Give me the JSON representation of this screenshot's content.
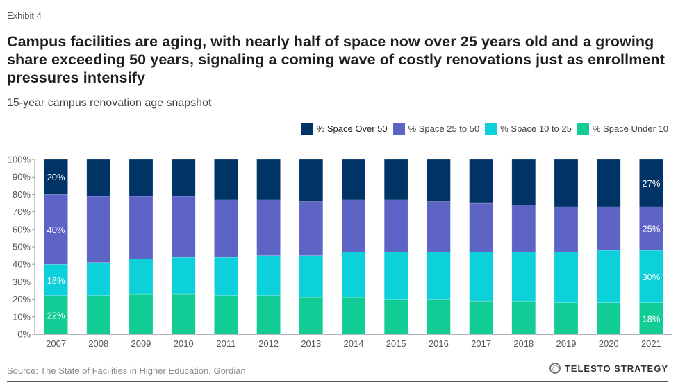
{
  "header": {
    "exhibit": "Exhibit 4",
    "title": "Campus facilities are aging, with nearly half of space now over 25 years old and a growing share exceeding 50 years, signaling a coming wave of costly renovations just as enrollment pressures intensify",
    "subtitle": "15-year campus renovation age snapshot"
  },
  "footer": {
    "source": "Source: The State of Facilities in Higher Education, Gordian",
    "brand": "TELESTO STRATEGY",
    "brand_icon": "ring-logo-icon"
  },
  "chart_data": {
    "type": "bar",
    "stacked": true,
    "normalized": true,
    "title": "15-year campus renovation age snapshot",
    "xlabel": "",
    "ylabel": "",
    "ylim": [
      0,
      100
    ],
    "yticks": [
      "0%",
      "10%",
      "20%",
      "30%",
      "40%",
      "50%",
      "60%",
      "70%",
      "80%",
      "90%",
      "100%"
    ],
    "grid": false,
    "legend_position": "top-right",
    "categories": [
      "2007",
      "2008",
      "2009",
      "2010",
      "2011",
      "2012",
      "2013",
      "2014",
      "2015",
      "2016",
      "2017",
      "2018",
      "2019",
      "2020",
      "2021"
    ],
    "series": [
      {
        "name": "% Space Under 10",
        "color": "#12CC96",
        "values": [
          22,
          22,
          23,
          23,
          22,
          22,
          21,
          21,
          20,
          20,
          19,
          19,
          18,
          18,
          18
        ]
      },
      {
        "name": "% Space 10 to 25",
        "color": "#0CD0DA",
        "values": [
          18,
          19,
          20,
          21,
          22,
          23,
          24,
          26,
          27,
          27,
          28,
          28,
          29,
          30,
          30
        ]
      },
      {
        "name": "% Space 25 to 50",
        "color": "#5E63C6",
        "values": [
          40,
          38,
          36,
          35,
          33,
          32,
          31,
          30,
          30,
          29,
          28,
          27,
          26,
          25,
          25
        ]
      },
      {
        "name": "% Space Over 50",
        "color": "#003366",
        "values": [
          20,
          21,
          21,
          21,
          23,
          23,
          24,
          23,
          23,
          24,
          25,
          26,
          27,
          27,
          27
        ]
      }
    ],
    "legend_order": [
      "% Space Over 50",
      "% Space 25 to 50",
      "% Space 10 to 25",
      "% Space Under 10"
    ],
    "data_labels": [
      {
        "category": "2007",
        "series": "% Space Over 50",
        "text": "20%"
      },
      {
        "category": "2007",
        "series": "% Space 25 to 50",
        "text": "40%"
      },
      {
        "category": "2007",
        "series": "% Space 10 to 25",
        "text": "18%"
      },
      {
        "category": "2007",
        "series": "% Space Under 10",
        "text": "22%"
      },
      {
        "category": "2021",
        "series": "% Space Over 50",
        "text": "27%"
      },
      {
        "category": "2021",
        "series": "% Space 25 to 50",
        "text": "25%"
      },
      {
        "category": "2021",
        "series": "% Space 10 to 25",
        "text": "30%"
      },
      {
        "category": "2021",
        "series": "% Space Under 10",
        "text": "18%"
      }
    ]
  }
}
